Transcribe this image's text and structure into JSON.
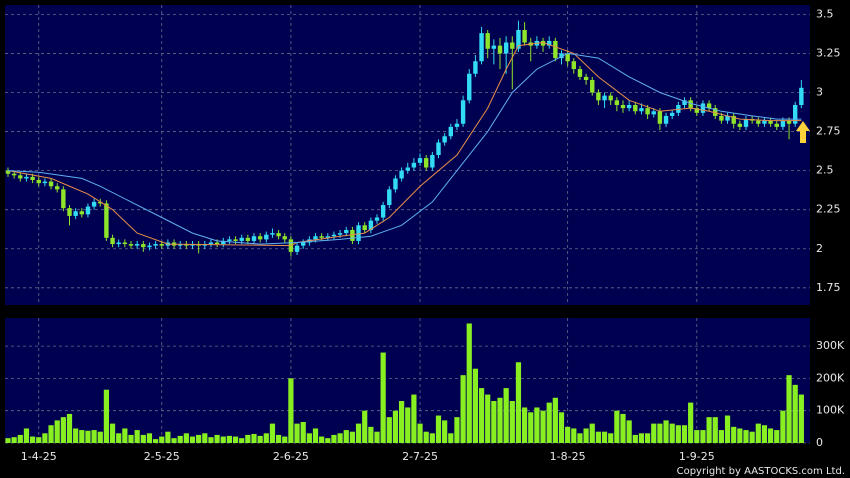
{
  "chart_data": [
    {
      "type": "candlestick",
      "categories": [
        null,
        null,
        null,
        null,
        null,
        "1-4-25",
        null,
        null,
        null,
        null,
        null,
        null,
        null,
        null,
        null,
        null,
        null,
        null,
        null,
        null,
        null,
        null,
        null,
        null,
        null,
        "2-5-25",
        null,
        null,
        null,
        null,
        null,
        null,
        null,
        null,
        null,
        null,
        null,
        null,
        null,
        null,
        null,
        null,
        null,
        null,
        null,
        null,
        "2-6-25",
        null,
        null,
        null,
        null,
        null,
        null,
        null,
        null,
        null,
        null,
        null,
        null,
        null,
        null,
        null,
        null,
        null,
        null,
        null,
        null,
        "2-7-25",
        null,
        null,
        null,
        null,
        null,
        null,
        null,
        null,
        null,
        null,
        null,
        null,
        null,
        null,
        null,
        null,
        null,
        null,
        null,
        null,
        null,
        null,
        null,
        "1-8-25",
        null,
        null,
        null,
        null,
        null,
        null,
        null,
        null,
        null,
        null,
        null,
        null,
        null,
        null,
        null,
        null,
        null,
        null,
        null,
        null,
        "1-9-25",
        null,
        null,
        null,
        null,
        null,
        null,
        null,
        null,
        null,
        null,
        null,
        null,
        null,
        null,
        null,
        null,
        null
      ],
      "open": [
        2.5,
        2.48,
        2.47,
        2.45,
        2.46,
        2.44,
        2.42,
        2.43,
        2.4,
        2.38,
        2.26,
        2.21,
        2.24,
        2.22,
        2.27,
        2.3,
        2.29,
        2.07,
        2.03,
        2.04,
        2.03,
        2.02,
        2.03,
        2.01,
        2.02,
        2.03,
        2.02,
        2.04,
        2.02,
        2.03,
        2.02,
        2.03,
        2.02,
        2.03,
        2.04,
        2.03,
        2.05,
        2.06,
        2.05,
        2.07,
        2.05,
        2.08,
        2.06,
        2.09,
        2.1,
        2.08,
        2.06,
        1.98,
        2.02,
        2.04,
        2.06,
        2.08,
        2.07,
        2.08,
        2.09,
        2.1,
        2.12,
        2.05,
        2.15,
        2.12,
        2.18,
        2.2,
        2.28,
        2.38,
        2.45,
        2.5,
        2.52,
        2.55,
        2.58,
        2.52,
        2.6,
        2.68,
        2.72,
        2.78,
        2.8,
        2.95,
        3.12,
        3.2,
        3.38,
        3.28,
        3.3,
        3.25,
        3.32,
        3.28,
        3.4,
        3.32,
        3.3,
        3.33,
        3.3,
        3.33,
        3.22,
        3.25,
        3.2,
        3.15,
        3.1,
        3.08,
        3.0,
        2.95,
        2.98,
        2.95,
        2.92,
        2.9,
        2.92,
        2.88,
        2.9,
        2.86,
        2.88,
        2.8,
        2.85,
        2.87,
        2.92,
        2.95,
        2.9,
        2.87,
        2.93,
        2.9,
        2.85,
        2.82,
        2.85,
        2.8,
        2.78,
        2.83,
        2.82,
        2.8,
        2.82,
        2.8,
        2.78,
        2.82,
        2.8,
        2.92
      ],
      "high": [
        2.52,
        2.5,
        2.49,
        2.48,
        2.48,
        2.46,
        2.45,
        2.45,
        2.42,
        2.4,
        2.28,
        2.26,
        2.26,
        2.29,
        2.32,
        2.32,
        2.31,
        2.09,
        2.06,
        2.06,
        2.05,
        2.05,
        2.05,
        2.04,
        2.05,
        2.05,
        2.06,
        2.06,
        2.05,
        2.05,
        2.05,
        2.05,
        2.05,
        2.06,
        2.06,
        2.07,
        2.08,
        2.08,
        2.09,
        2.09,
        2.1,
        2.1,
        2.11,
        2.13,
        2.12,
        2.1,
        2.08,
        2.04,
        2.06,
        2.08,
        2.1,
        2.1,
        2.1,
        2.11,
        2.12,
        2.14,
        2.14,
        2.17,
        2.17,
        2.2,
        2.22,
        2.3,
        2.4,
        2.47,
        2.52,
        2.55,
        2.58,
        2.61,
        2.6,
        2.62,
        2.7,
        2.74,
        2.8,
        2.83,
        2.98,
        3.15,
        3.24,
        3.42,
        3.4,
        3.34,
        3.35,
        3.36,
        3.36,
        3.46,
        3.45,
        3.35,
        3.36,
        3.35,
        3.36,
        3.35,
        3.27,
        3.27,
        3.22,
        3.17,
        3.12,
        3.1,
        3.02,
        3.0,
        3.0,
        2.97,
        2.95,
        2.95,
        2.94,
        2.93,
        2.92,
        2.9,
        2.9,
        2.87,
        2.89,
        2.94,
        2.97,
        2.97,
        2.92,
        2.95,
        2.95,
        2.92,
        2.87,
        2.87,
        2.87,
        2.82,
        2.85,
        2.85,
        2.84,
        2.84,
        2.84,
        2.82,
        2.84,
        2.84,
        2.94,
        3.08
      ],
      "low": [
        2.46,
        2.45,
        2.43,
        2.43,
        2.42,
        2.4,
        2.4,
        2.38,
        2.36,
        2.24,
        2.15,
        2.19,
        2.2,
        2.2,
        2.25,
        2.27,
        2.05,
        2.01,
        2.01,
        2.01,
        2.0,
        2.0,
        1.98,
        1.99,
        2.0,
        2.0,
        2.0,
        2.0,
        2.0,
        2.0,
        2.0,
        1.97,
        2.0,
        2.01,
        2.01,
        2.01,
        2.03,
        2.03,
        2.03,
        2.03,
        2.03,
        2.04,
        2.04,
        2.07,
        2.06,
        2.04,
        1.95,
        1.96,
        2.0,
        2.02,
        2.04,
        2.05,
        2.05,
        2.06,
        2.07,
        2.08,
        2.03,
        2.03,
        2.1,
        2.1,
        2.16,
        2.18,
        2.26,
        2.36,
        2.43,
        2.48,
        2.5,
        2.53,
        2.5,
        2.5,
        2.58,
        2.66,
        2.7,
        2.76,
        2.78,
        2.93,
        3.1,
        3.18,
        3.22,
        3.18,
        3.15,
        3.12,
        3.02,
        3.26,
        3.3,
        3.2,
        3.28,
        3.26,
        3.28,
        3.2,
        3.18,
        3.17,
        3.12,
        3.08,
        3.05,
        2.98,
        2.92,
        2.9,
        2.92,
        2.88,
        2.87,
        2.88,
        2.86,
        2.86,
        2.83,
        2.84,
        2.76,
        2.78,
        2.83,
        2.85,
        2.9,
        2.88,
        2.85,
        2.85,
        2.88,
        2.83,
        2.8,
        2.8,
        2.77,
        2.76,
        2.76,
        2.8,
        2.78,
        2.78,
        2.78,
        2.76,
        2.76,
        2.7,
        2.78,
        2.9
      ],
      "close": [
        2.48,
        2.47,
        2.45,
        2.46,
        2.44,
        2.42,
        2.43,
        2.4,
        2.38,
        2.26,
        2.21,
        2.24,
        2.22,
        2.27,
        2.3,
        2.29,
        2.07,
        2.03,
        2.04,
        2.03,
        2.02,
        2.03,
        2.01,
        2.02,
        2.03,
        2.02,
        2.04,
        2.02,
        2.03,
        2.02,
        2.03,
        2.02,
        2.03,
        2.04,
        2.03,
        2.05,
        2.06,
        2.05,
        2.07,
        2.05,
        2.08,
        2.06,
        2.09,
        2.1,
        2.08,
        2.06,
        1.98,
        2.02,
        2.04,
        2.06,
        2.08,
        2.07,
        2.08,
        2.09,
        2.1,
        2.12,
        2.05,
        2.15,
        2.12,
        2.18,
        2.2,
        2.28,
        2.38,
        2.45,
        2.5,
        2.52,
        2.55,
        2.58,
        2.52,
        2.6,
        2.68,
        2.72,
        2.78,
        2.8,
        2.95,
        3.12,
        3.2,
        3.38,
        3.28,
        3.3,
        3.25,
        3.32,
        3.28,
        3.4,
        3.32,
        3.3,
        3.33,
        3.3,
        3.33,
        3.22,
        3.25,
        3.2,
        3.15,
        3.1,
        3.08,
        3.0,
        2.95,
        2.98,
        2.95,
        2.92,
        2.9,
        2.92,
        2.88,
        2.9,
        2.86,
        2.88,
        2.8,
        2.85,
        2.87,
        2.92,
        2.95,
        2.9,
        2.87,
        2.93,
        2.9,
        2.85,
        2.82,
        2.85,
        2.8,
        2.78,
        2.83,
        2.82,
        2.8,
        2.82,
        2.8,
        2.78,
        2.82,
        2.8,
        2.92,
        3.03
      ],
      "up_color": "#33dcf5",
      "down_color": "#8ee52a",
      "overlays": [
        {
          "color": "#e8904a",
          "x": [
            0,
            7,
            13,
            17,
            21,
            26,
            46,
            47,
            54,
            58,
            62,
            67,
            73,
            78,
            81,
            83,
            87,
            92,
            96,
            101,
            106,
            111,
            114,
            119,
            124,
            129
          ],
          "values": [
            2.5,
            2.45,
            2.35,
            2.25,
            2.1,
            2.03,
            2.02,
            2.04,
            2.08,
            2.1,
            2.2,
            2.4,
            2.6,
            2.9,
            3.15,
            3.3,
            3.32,
            3.25,
            3.1,
            2.95,
            2.88,
            2.9,
            2.88,
            2.83,
            2.82,
            2.82
          ]
        },
        {
          "color": "#5fb0f0",
          "x": [
            0,
            5,
            12,
            15,
            20,
            25,
            30,
            34,
            41,
            47,
            54,
            59,
            64,
            69,
            73,
            78,
            82,
            86,
            91,
            96,
            101,
            106,
            111,
            116,
            121,
            125,
            129
          ],
          "values": [
            2.5,
            2.49,
            2.45,
            2.4,
            2.3,
            2.2,
            2.1,
            2.05,
            2.03,
            2.04,
            2.06,
            2.08,
            2.15,
            2.3,
            2.5,
            2.75,
            3.0,
            3.15,
            3.25,
            3.22,
            3.1,
            3.0,
            2.93,
            2.88,
            2.85,
            2.83,
            2.83
          ]
        }
      ],
      "ylim": [
        1.64,
        3.56
      ],
      "yticks": [
        1.75,
        2,
        2.25,
        2.5,
        2.75,
        3,
        3.25,
        3.5
      ],
      "grid": true
    },
    {
      "type": "bar",
      "values": [
        15000,
        18000,
        25000,
        45000,
        20000,
        18000,
        30000,
        55000,
        70000,
        80000,
        90000,
        45000,
        40000,
        38000,
        40000,
        35000,
        165000,
        60000,
        30000,
        45000,
        25000,
        40000,
        25000,
        30000,
        12000,
        20000,
        35000,
        15000,
        22000,
        30000,
        20000,
        25000,
        30000,
        18000,
        25000,
        20000,
        22000,
        20000,
        15000,
        25000,
        28000,
        22000,
        30000,
        60000,
        25000,
        20000,
        200000,
        60000,
        65000,
        30000,
        45000,
        20000,
        15000,
        25000,
        30000,
        40000,
        35000,
        60000,
        100000,
        50000,
        35000,
        280000,
        80000,
        100000,
        130000,
        110000,
        150000,
        60000,
        35000,
        30000,
        85000,
        70000,
        30000,
        80000,
        210000,
        370000,
        230000,
        170000,
        150000,
        130000,
        140000,
        170000,
        130000,
        250000,
        110000,
        95000,
        110000,
        100000,
        125000,
        140000,
        95000,
        50000,
        45000,
        30000,
        45000,
        60000,
        35000,
        35000,
        30000,
        100000,
        90000,
        70000,
        25000,
        30000,
        30000,
        60000,
        60000,
        70000,
        60000,
        55000,
        55000,
        125000,
        40000,
        40000,
        80000,
        80000,
        40000,
        85000,
        50000,
        45000,
        40000,
        35000,
        60000,
        55000,
        45000,
        40000,
        100000,
        210000,
        180000,
        150000
      ],
      "color": "#88f020",
      "ylim": [
        0,
        387000
      ],
      "yticks": [
        0,
        {
          "value": 100000,
          "label": "100K"
        },
        {
          "value": 200000,
          "label": "200K"
        },
        {
          "value": 300000,
          "label": "300K"
        }
      ],
      "grid": true
    }
  ],
  "copyright": "Copyright by AASTOCKS.com Ltd."
}
